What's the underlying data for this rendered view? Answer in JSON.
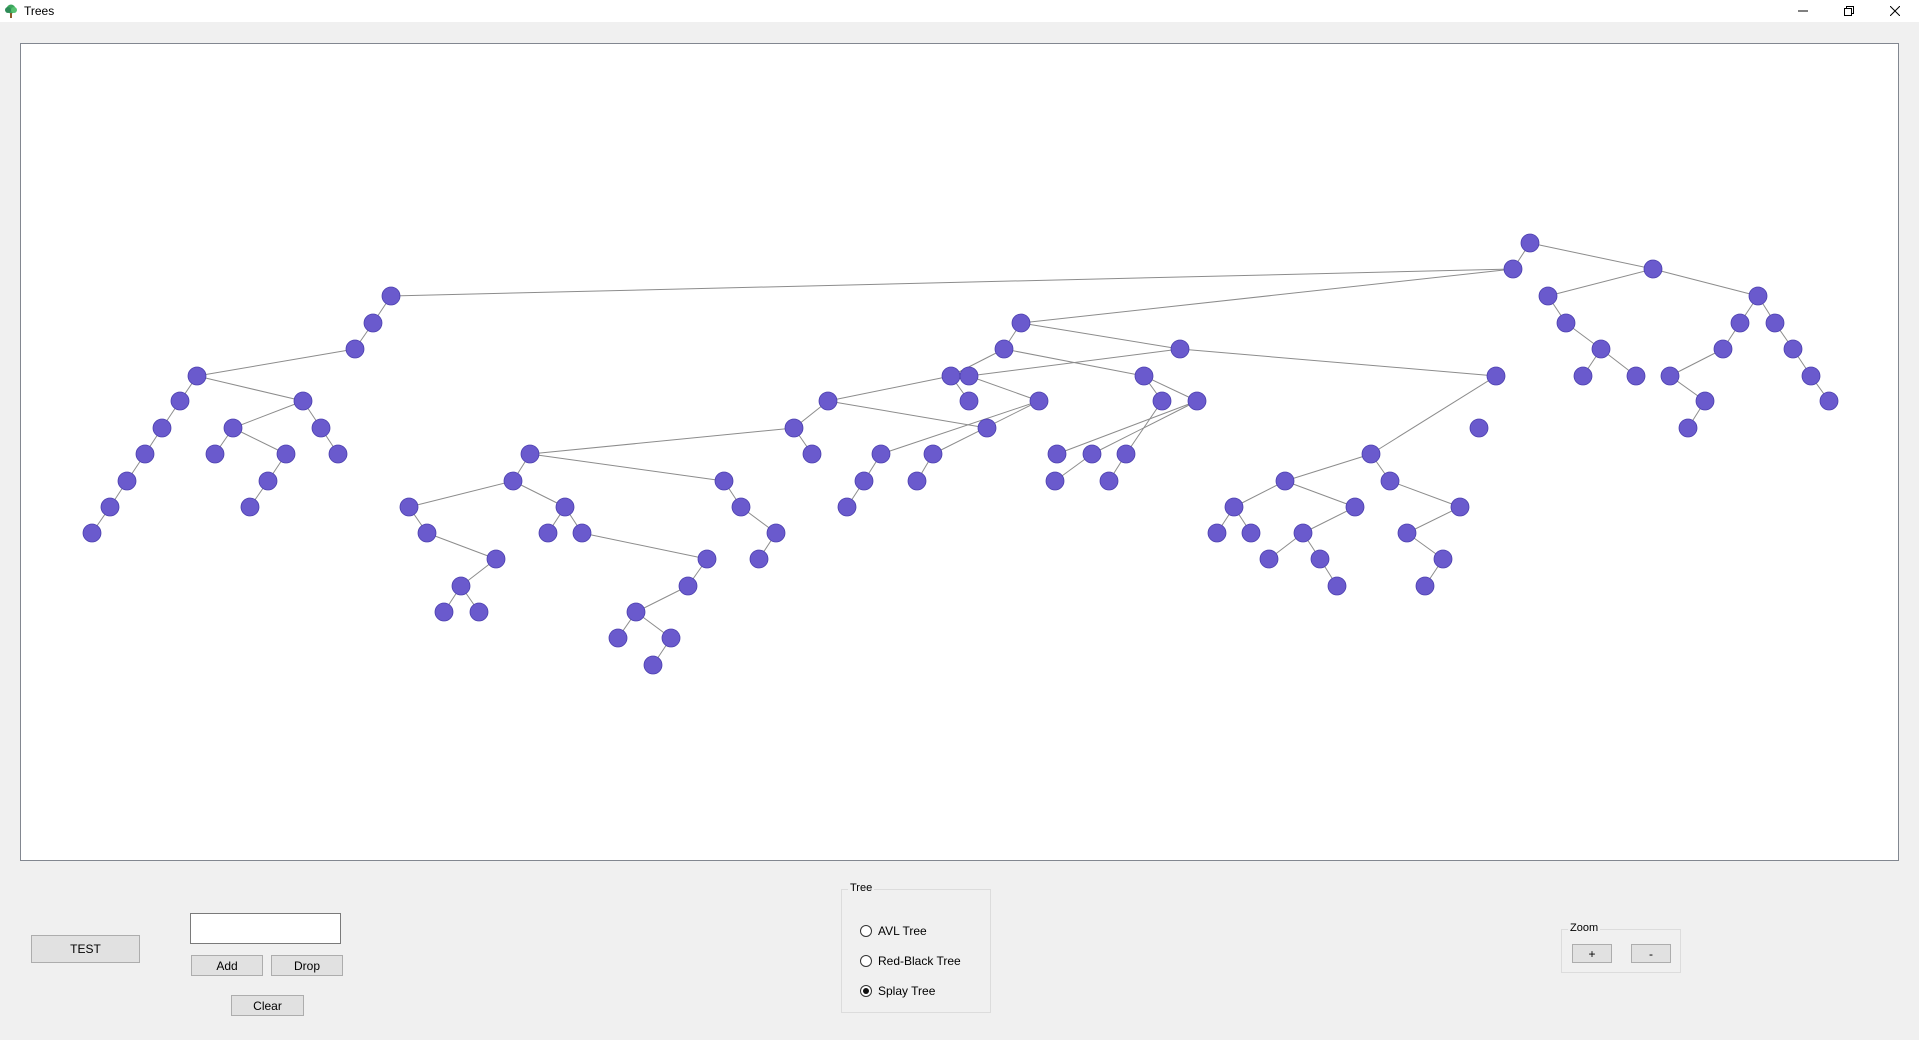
{
  "window": {
    "title": "Trees",
    "minimize_icon": "minimize-icon",
    "restore_icon": "restore-icon",
    "close_icon": "close-icon"
  },
  "controls": {
    "test_label": "TEST",
    "input_value": "",
    "add_label": "Add",
    "drop_label": "Drop",
    "clear_label": "Clear"
  },
  "tree_group": {
    "title": "Tree",
    "options": [
      {
        "label": "AVL Tree",
        "selected": false
      },
      {
        "label": "Red-Black Tree",
        "selected": false
      },
      {
        "label": "Splay Tree",
        "selected": true
      }
    ]
  },
  "zoom_group": {
    "title": "Zoom",
    "plus_label": "+",
    "minus_label": "-"
  },
  "colors": {
    "node_fill": "#6a5acd",
    "edge": "#8c8c8c",
    "canvas_bg": "#ffffff",
    "window_bg": "#f0f0f0"
  }
}
